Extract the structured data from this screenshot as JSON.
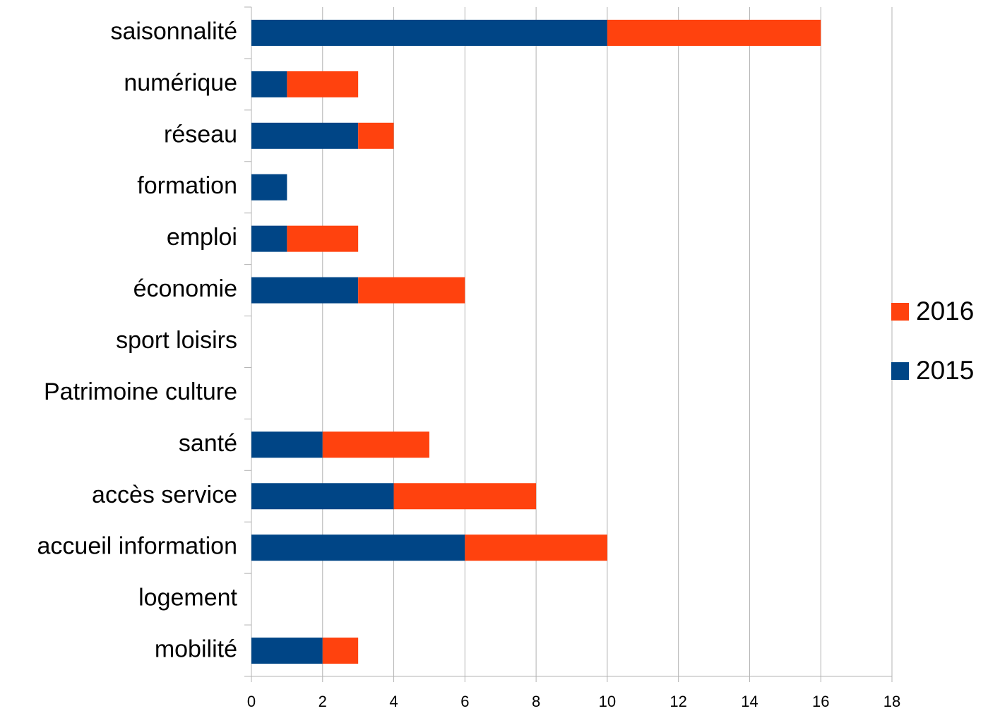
{
  "chart_data": {
    "type": "bar",
    "orientation": "horizontal",
    "stacked": true,
    "categories": [
      "saisonnalité",
      "numérique",
      "réseau",
      "formation",
      "emploi",
      "économie",
      "sport loisirs",
      "Patrimoine culture",
      "santé",
      "accès service",
      "accueil information",
      "logement",
      "mobilité"
    ],
    "series": [
      {
        "name": "2015",
        "color": "#004586",
        "values": [
          10,
          1,
          3,
          1,
          1,
          3,
          0,
          0,
          2,
          4,
          6,
          0,
          2
        ]
      },
      {
        "name": "2016",
        "color": "#ff420e",
        "values": [
          6,
          2,
          1,
          0,
          2,
          3,
          0,
          0,
          3,
          4,
          4,
          0,
          1
        ]
      }
    ],
    "xlim": [
      0,
      18
    ],
    "xticks": [
      0,
      2,
      4,
      6,
      8,
      10,
      12,
      14,
      16,
      18
    ],
    "grid": true,
    "legend": "right"
  }
}
